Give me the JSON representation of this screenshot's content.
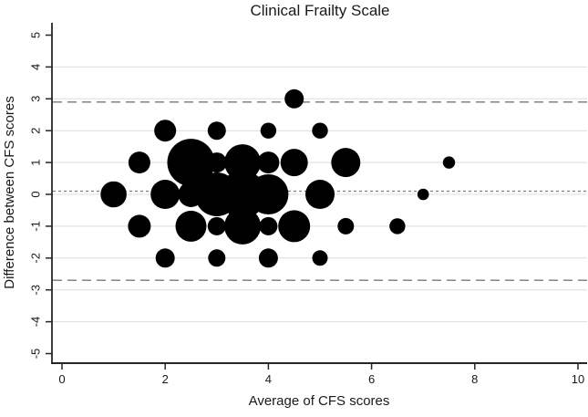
{
  "chart_data": {
    "type": "bubble",
    "title": "Clinical Frailty Scale",
    "xlabel": "Average of CFS scores",
    "ylabel": "Difference between CFS scores",
    "xlim": [
      0,
      10
    ],
    "ylim": [
      -5,
      5
    ],
    "x_ticks": [
      0,
      2,
      4,
      6,
      8,
      10
    ],
    "y_ticks": [
      5,
      4,
      3,
      2,
      1,
      0,
      -1,
      -2,
      -3,
      -4,
      -5
    ],
    "gridline_y_values": [
      4,
      3,
      2,
      1,
      0,
      -1,
      -2,
      -3,
      -4
    ],
    "grid": "horizontal-only",
    "legend": "none",
    "reference_lines": [
      {
        "name": "upper-limit-of-agreement",
        "value": 2.9,
        "style": "dashed"
      },
      {
        "name": "mean-difference",
        "value": 0.1,
        "style": "dotted"
      },
      {
        "name": "lower-limit-of-agreement",
        "value": -2.7,
        "style": "dashed"
      }
    ],
    "series": [
      {
        "name": "paired CFS ratings",
        "marker": "circle",
        "color": "#000000",
        "points": [
          {
            "x": 4.5,
            "y": 3,
            "r": 10.5
          },
          {
            "x": 2,
            "y": 2,
            "r": 12
          },
          {
            "x": 3,
            "y": 2,
            "r": 10
          },
          {
            "x": 4,
            "y": 2,
            "r": 8.7
          },
          {
            "x": 5,
            "y": 2,
            "r": 8.7
          },
          {
            "x": 1.5,
            "y": 1,
            "r": 12
          },
          {
            "x": 2.5,
            "y": 1,
            "r": 26
          },
          {
            "x": 3,
            "y": 1,
            "r": 11
          },
          {
            "x": 3.5,
            "y": 1,
            "r": 20
          },
          {
            "x": 4,
            "y": 1,
            "r": 12
          },
          {
            "x": 4.5,
            "y": 1,
            "r": 15
          },
          {
            "x": 5.5,
            "y": 1,
            "r": 16
          },
          {
            "x": 7.5,
            "y": 1,
            "r": 6.7
          },
          {
            "x": 1,
            "y": 0,
            "r": 14.3
          },
          {
            "x": 2,
            "y": 0,
            "r": 16
          },
          {
            "x": 2.5,
            "y": 0,
            "r": 14
          },
          {
            "x": 3,
            "y": 0,
            "r": 24
          },
          {
            "x": 3.5,
            "y": 0,
            "r": 26
          },
          {
            "x": 4,
            "y": 0,
            "r": 22
          },
          {
            "x": 5,
            "y": 0,
            "r": 16
          },
          {
            "x": 7,
            "y": 0,
            "r": 6.3
          },
          {
            "x": 1.5,
            "y": -1,
            "r": 12.5
          },
          {
            "x": 2.5,
            "y": -1,
            "r": 17
          },
          {
            "x": 3,
            "y": -1,
            "r": 10
          },
          {
            "x": 3.5,
            "y": -1,
            "r": 20
          },
          {
            "x": 4,
            "y": -1,
            "r": 10
          },
          {
            "x": 4.5,
            "y": -1,
            "r": 17.5
          },
          {
            "x": 5.5,
            "y": -1,
            "r": 9
          },
          {
            "x": 6.5,
            "y": -1,
            "r": 8.7
          },
          {
            "x": 2,
            "y": -2,
            "r": 10.5
          },
          {
            "x": 3,
            "y": -2,
            "r": 9.5
          },
          {
            "x": 4,
            "y": -2,
            "r": 10.5
          },
          {
            "x": 5,
            "y": -2,
            "r": 8.5
          }
        ]
      }
    ]
  },
  "style": {
    "background_color": "#ffffff",
    "bubble_color": "#000000",
    "axis_color": "#262626",
    "gridline_color": "#dcdcdc",
    "dashed_line_color": "#8c8c8c",
    "dotted_line_color": "#7d7d7d",
    "text_color": "#1a1a1a"
  }
}
